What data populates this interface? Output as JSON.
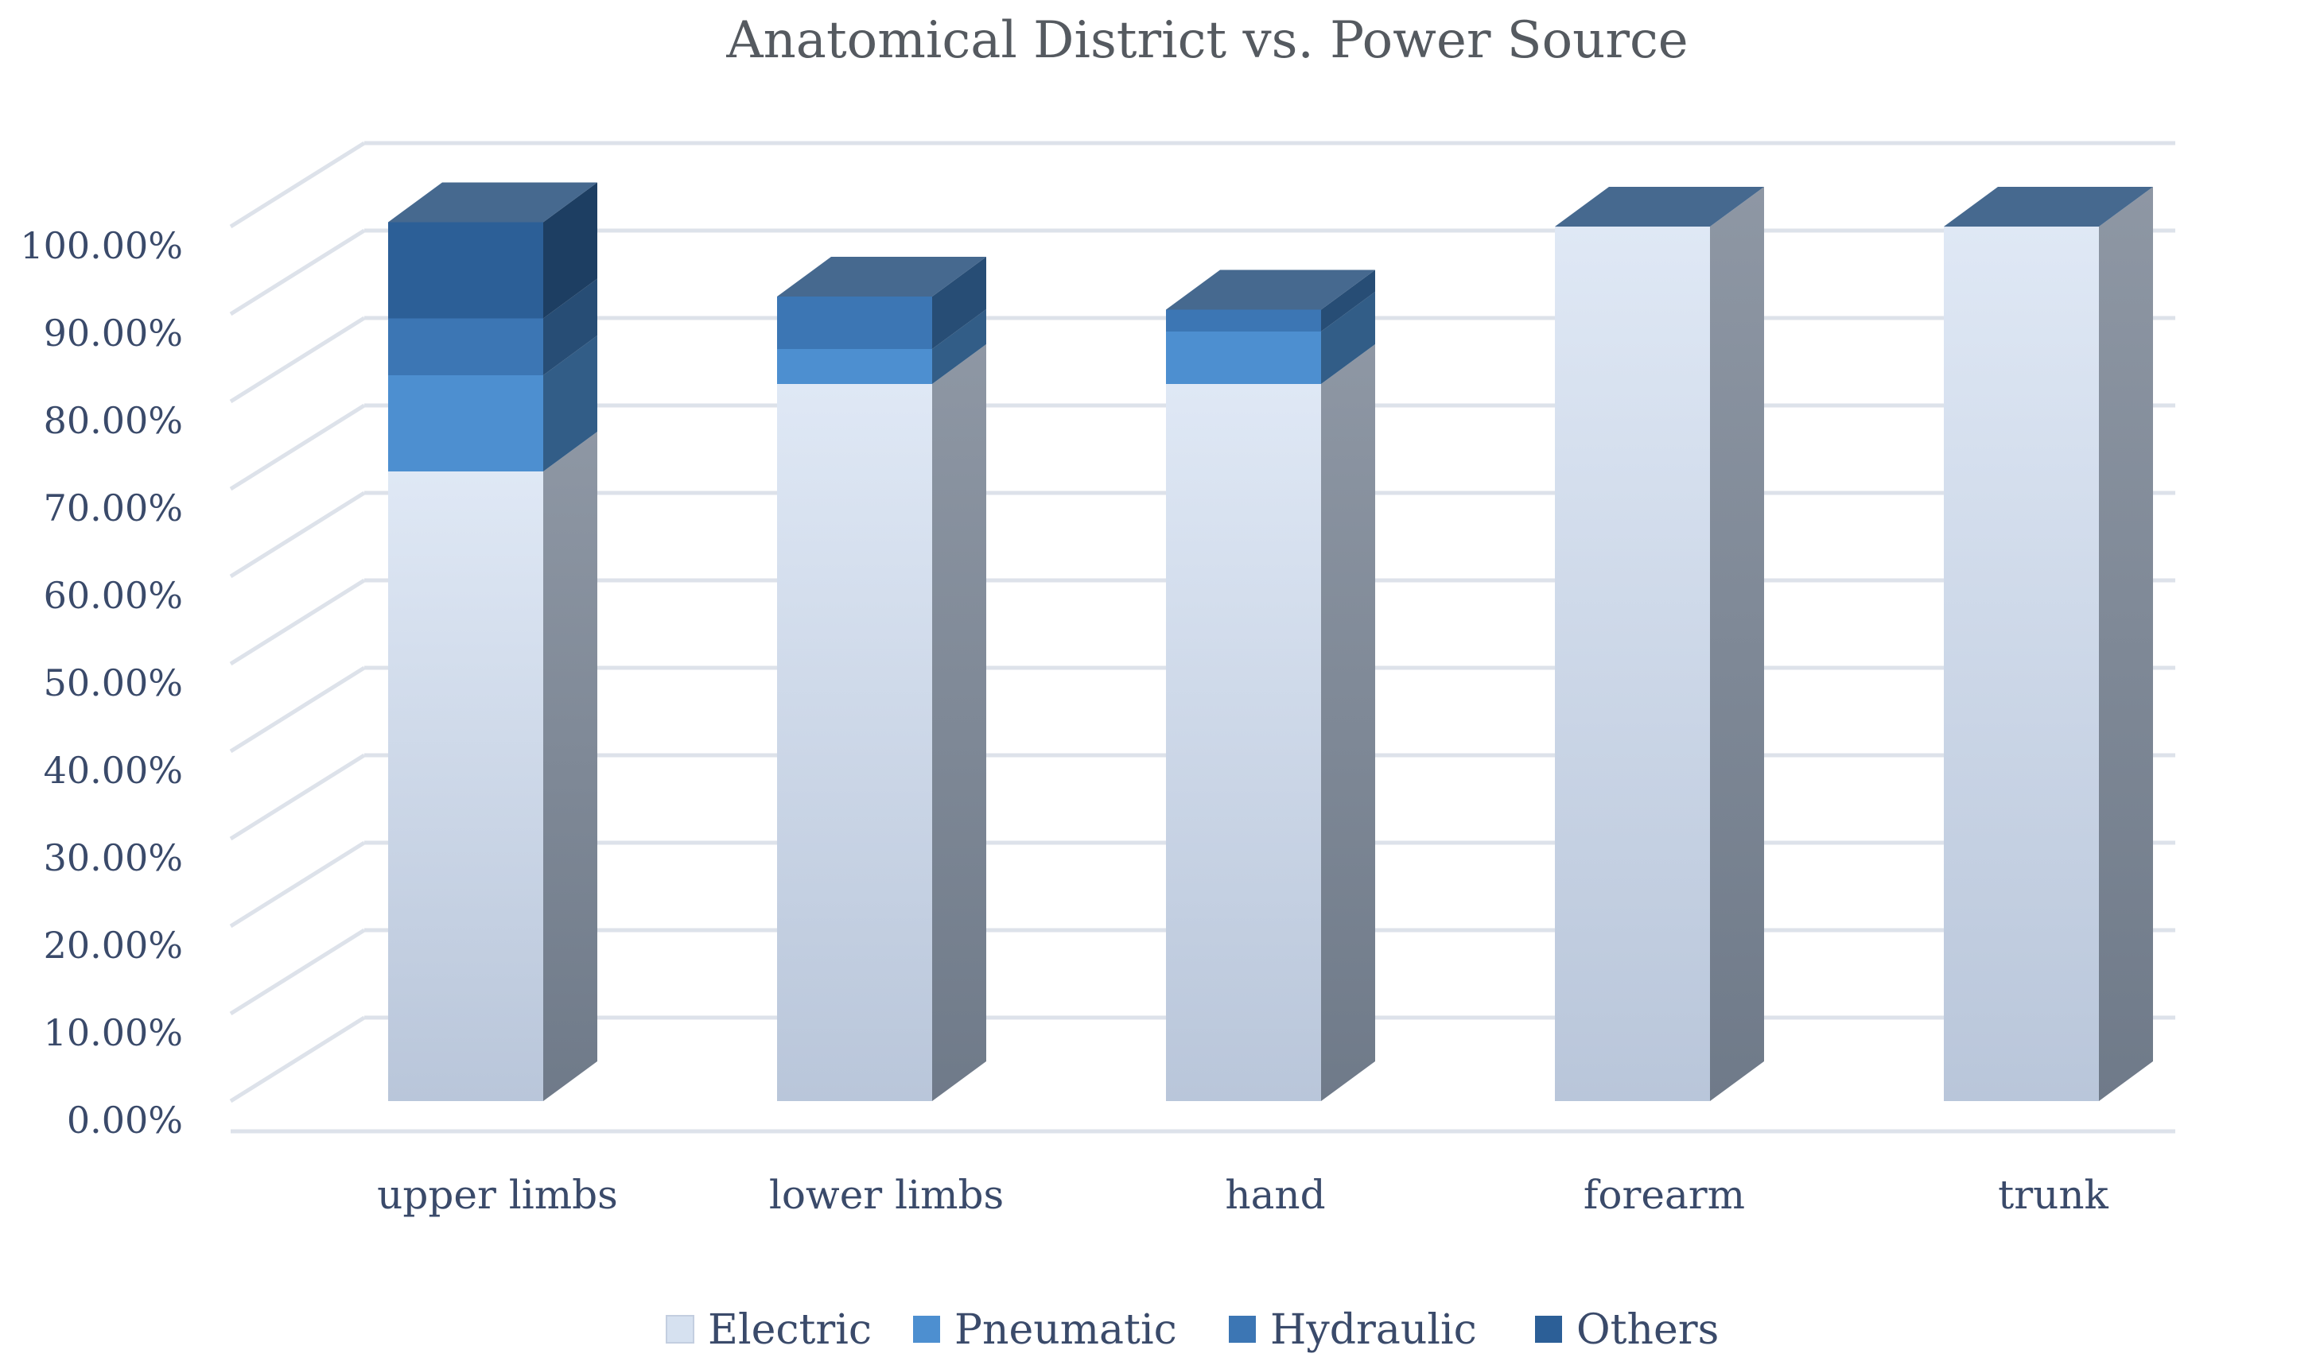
{
  "chart_data": {
    "type": "bar",
    "stacked": true,
    "style": "3d-column",
    "title": "Anatomical District vs. Power Source",
    "categories": [
      "upper limbs",
      "lower limbs",
      "hand",
      "forearm",
      "trunk"
    ],
    "series": [
      {
        "name": "Electric",
        "values": [
          72,
          82,
          82,
          100,
          100
        ],
        "color": "#d6e1f0"
      },
      {
        "name": "Pneumatic",
        "values": [
          11,
          4,
          6,
          0,
          0
        ],
        "color": "#4d8fd0"
      },
      {
        "name": "Hydraulic",
        "values": [
          6.5,
          6,
          2.5,
          0,
          0
        ],
        "color": "#3c76b4"
      },
      {
        "name": "Others",
        "values": [
          11,
          0,
          0,
          0,
          0
        ],
        "color": "#2c5f97"
      }
    ],
    "ylim": [
      0,
      100
    ],
    "yticks": [
      "0.00%",
      "10.00%",
      "20.00%",
      "30.00%",
      "40.00%",
      "50.00%",
      "60.00%",
      "70.00%",
      "80.00%",
      "90.00%",
      "100.00%"
    ],
    "xlabel": "",
    "ylabel": "",
    "legend_position": "bottom",
    "grid": true
  }
}
